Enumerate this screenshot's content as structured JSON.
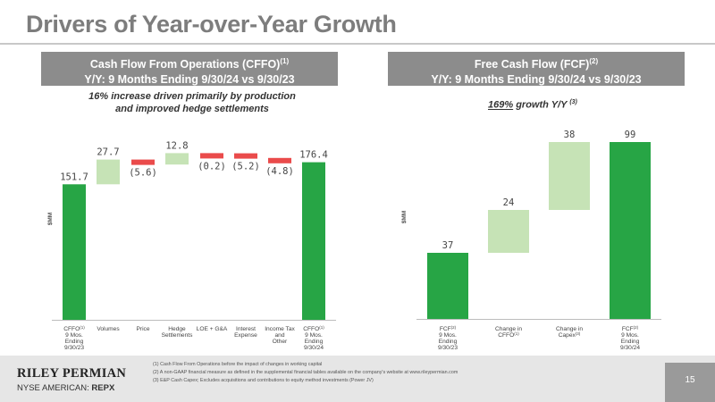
{
  "page": {
    "title": "Drivers of Year-over-Year Growth",
    "page_number": "15"
  },
  "left_panel": {
    "header_line1": "Cash Flow From Operations (CFFO)",
    "header_line1_sup": "(1)",
    "header_line2": "Y/Y: 9 Months Ending 9/30/24 vs 9/30/23",
    "note_line1": "16% increase driven primarily by production",
    "note_line2": "and improved hedge settlements"
  },
  "right_panel": {
    "header_line1": "Free Cash Flow (FCF)",
    "header_line1_sup": "(2)",
    "header_line2": "Y/Y: 9 Months Ending 9/30/24 vs 9/30/23",
    "note_underlined": "169%",
    "note_rest": " growth Y/Y",
    "note_sup": "(3)"
  },
  "colors": {
    "total": "#27a545",
    "increase": "#c6e3b6",
    "decrease": "#ea4b4b",
    "header_bg": "#8c8c8c"
  },
  "chart_data": [
    {
      "type": "bar",
      "subtype": "waterfall",
      "ylabel": "$MM",
      "categories": [
        [
          "CFFO",
          "(1)",
          "9 Mos.",
          "Ending",
          "9/30/23"
        ],
        [
          "Volumes"
        ],
        [
          "Price"
        ],
        [
          "Hedge",
          "Settlements"
        ],
        [
          "LOE + G&A"
        ],
        [
          "Interest",
          "Expense"
        ],
        [
          "Income Tax",
          "and",
          "Other"
        ],
        [
          "CFFO",
          "(1)",
          "9 Mos.",
          "Ending",
          "9/30/24"
        ]
      ],
      "values": [
        151.7,
        27.7,
        -5.6,
        12.8,
        -0.2,
        -5.2,
        -4.8,
        176.4
      ],
      "labels": [
        "151.7",
        "27.7",
        "(5.6)",
        "12.8",
        "(0.2)",
        "(5.2)",
        "(4.8)",
        "176.4"
      ],
      "kinds": [
        "total",
        "delta",
        "delta",
        "delta",
        "delta",
        "delta",
        "delta",
        "total"
      ],
      "ylim": [
        0,
        200
      ],
      "grid": false
    },
    {
      "type": "bar",
      "subtype": "waterfall",
      "ylabel": "$MM",
      "categories": [
        [
          "FCF",
          "(2)",
          "9 Mos.",
          "Ending",
          "9/30/23"
        ],
        [
          "Change in",
          "CFFO",
          "(1)"
        ],
        [
          "Change in",
          "Capex",
          "(3)"
        ],
        [
          "FCF",
          "(2)",
          "9 Mos.",
          "Ending",
          "9/30/24"
        ]
      ],
      "values": [
        37,
        24,
        38,
        99
      ],
      "labels": [
        "37",
        "24",
        "38",
        "99"
      ],
      "kinds": [
        "total",
        "delta",
        "delta",
        "total"
      ],
      "ylim": [
        0,
        110
      ],
      "grid": false
    }
  ],
  "footer": {
    "logo_name": "RILEY PERMIAN",
    "exchange": "NYSE AMERICAN: ",
    "ticker": "REPX",
    "footnotes": [
      "(1) Cash Flow From Operations before the impact of changes in working capital",
      "(2) A non-GAAP financial measure as defined in the supplemental financial tables available on the company's website at www.rileypermian.com",
      "(3) E&P Cash Capex; Excludes acquisitions and contributions to equity method investments (Power JV)"
    ]
  }
}
